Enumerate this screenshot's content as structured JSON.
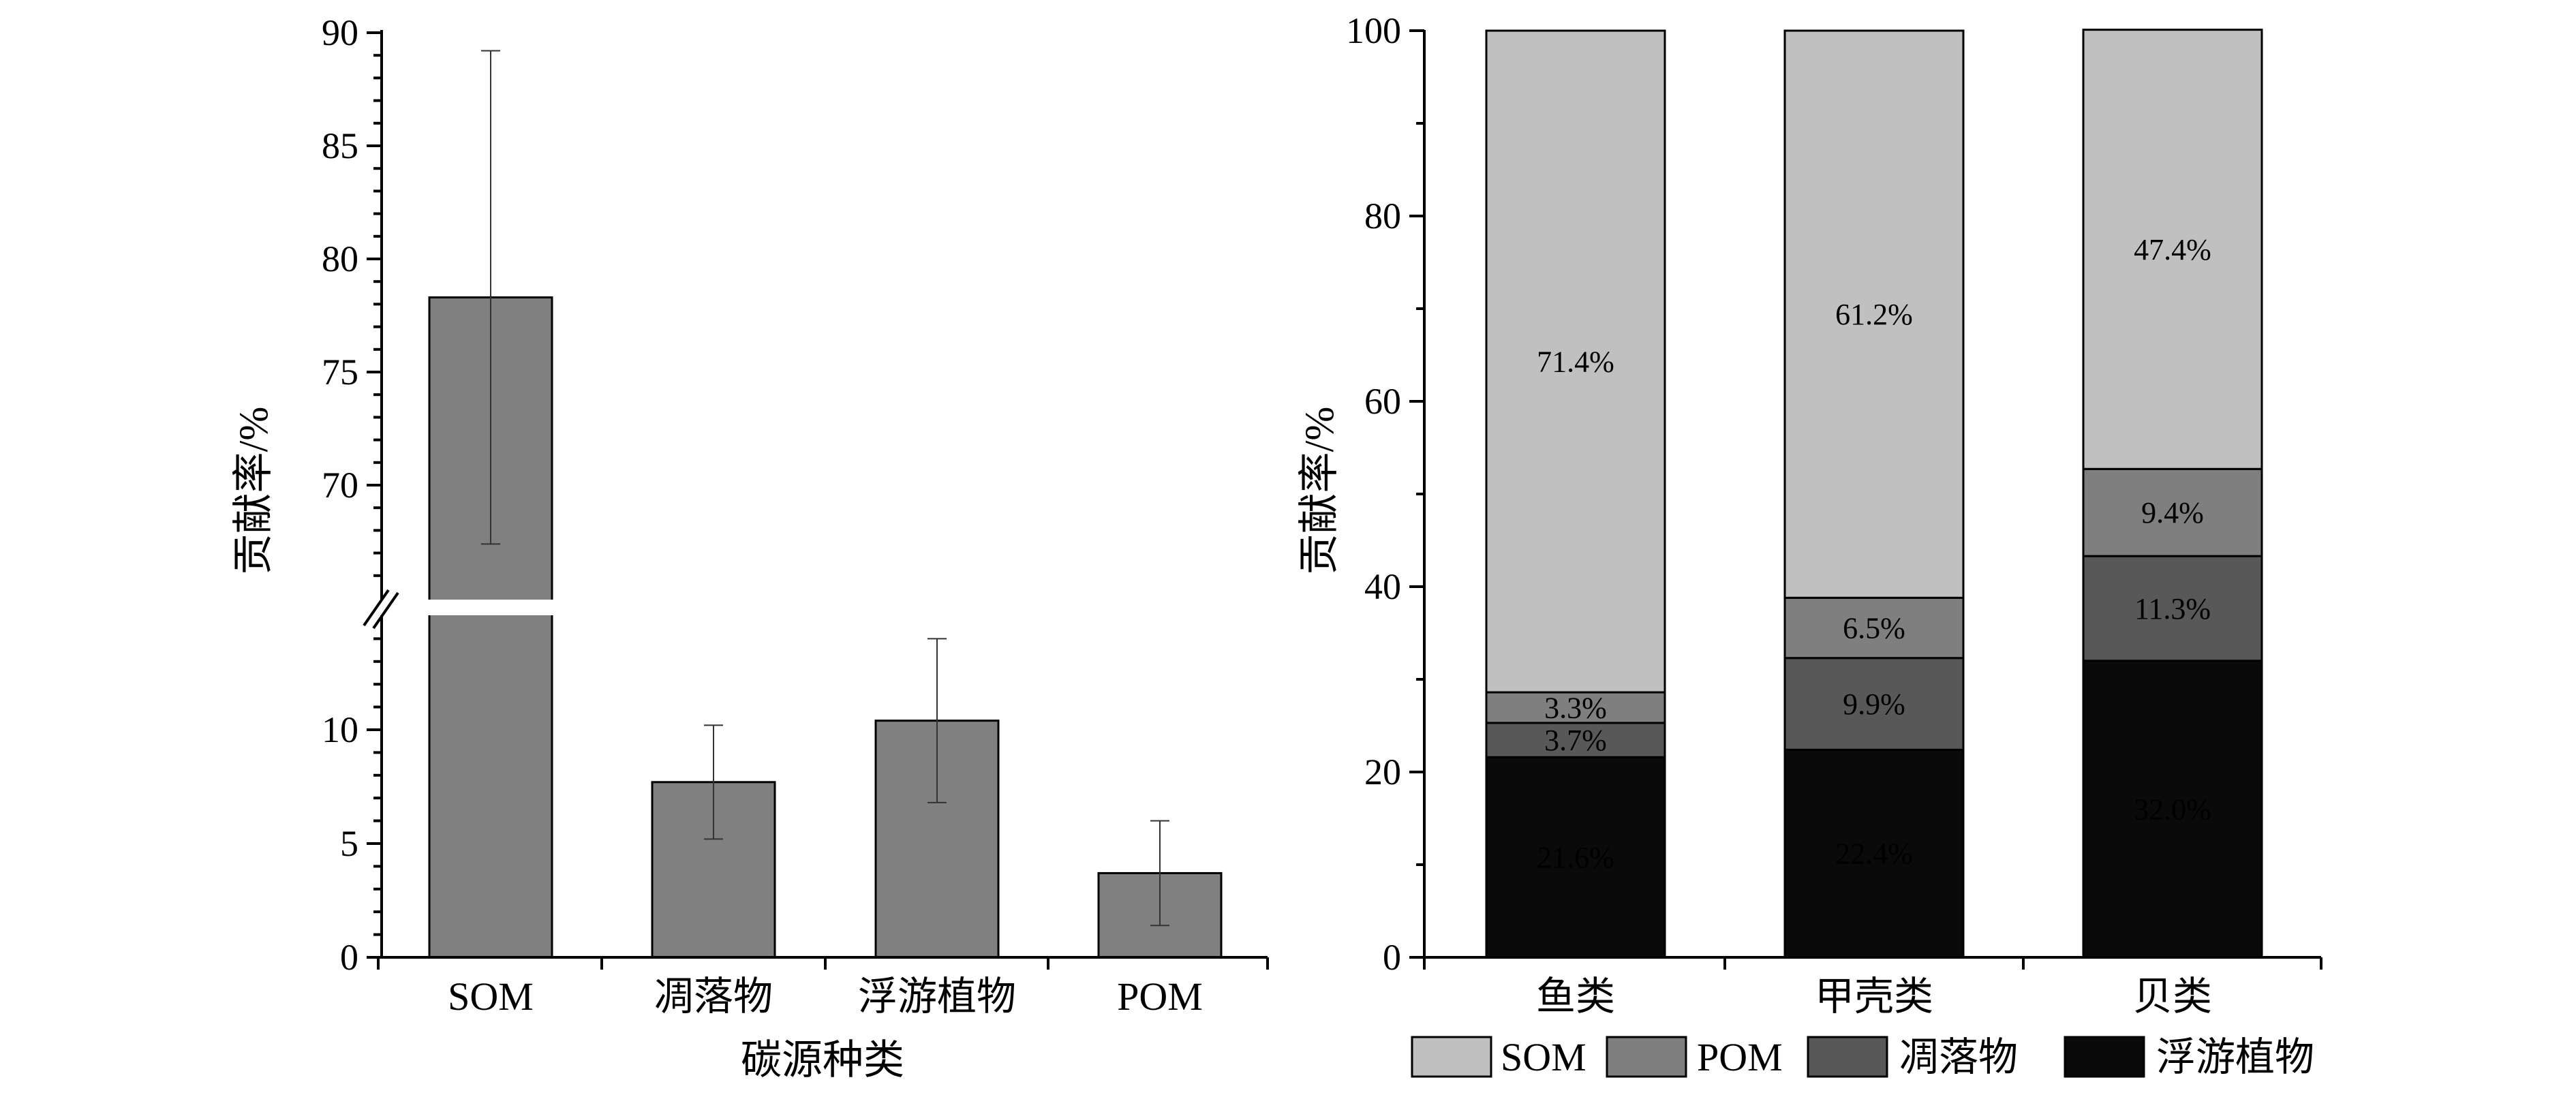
{
  "colors": {
    "left_bar": "#808080",
    "som": "#c0c0c0",
    "pom": "#7f7f7f",
    "litter": "#585858",
    "phyto": "#0a0a0a",
    "axis": "#000000"
  },
  "chart_data": [
    {
      "type": "bar",
      "categories": [
        "SOM",
        "凋落物",
        "浮游植物",
        "POM"
      ],
      "values": [
        78.3,
        7.7,
        10.4,
        3.7
      ],
      "errors": [
        [
          67.4,
          89.2
        ],
        [
          5.2,
          10.2
        ],
        [
          6.8,
          14.0
        ],
        [
          1.4,
          6.0
        ]
      ],
      "xlabel": "碳源种类",
      "ylabel": "贡献率/%",
      "axis_break": {
        "lower_range": [
          0,
          15
        ],
        "upper_range": [
          65,
          90
        ]
      },
      "yticks_lower": [
        0,
        5,
        10
      ],
      "yticks_upper": [
        70,
        75,
        80,
        85,
        90
      ],
      "ytick_labels_lower": [
        "0",
        "5",
        "10"
      ],
      "ytick_labels_upper": [
        "70",
        "75",
        "80",
        "85",
        "90"
      ],
      "grid": false
    },
    {
      "type": "stacked_bar",
      "categories": [
        "鱼类",
        "甲壳类",
        "贝类"
      ],
      "ylabel": "贡献率/%",
      "ylim": [
        0,
        100
      ],
      "yticks": [
        0,
        20,
        40,
        60,
        80,
        100
      ],
      "ytick_labels": [
        "0",
        "20",
        "40",
        "60",
        "80",
        "100"
      ],
      "grid": false,
      "legend_position": "bottom",
      "series": [
        {
          "name": "浮游植物",
          "values": [
            21.6,
            22.4,
            32.0
          ],
          "labels": [
            "21.6%",
            "22.4%",
            "32.0%"
          ]
        },
        {
          "name": "凋落物",
          "values": [
            3.7,
            9.9,
            11.3
          ],
          "labels": [
            "3.7%",
            "9.9%",
            "11.3%"
          ]
        },
        {
          "name": "POM",
          "values": [
            3.3,
            6.5,
            9.4
          ],
          "labels": [
            "3.3%",
            "6.5%",
            "9.4%"
          ]
        },
        {
          "name": "SOM",
          "values": [
            71.4,
            61.2,
            47.4
          ],
          "labels": [
            "71.4%",
            "61.2%",
            "47.4%"
          ]
        }
      ],
      "legend": [
        "SOM",
        "POM",
        "凋落物",
        "浮游植物"
      ]
    }
  ]
}
